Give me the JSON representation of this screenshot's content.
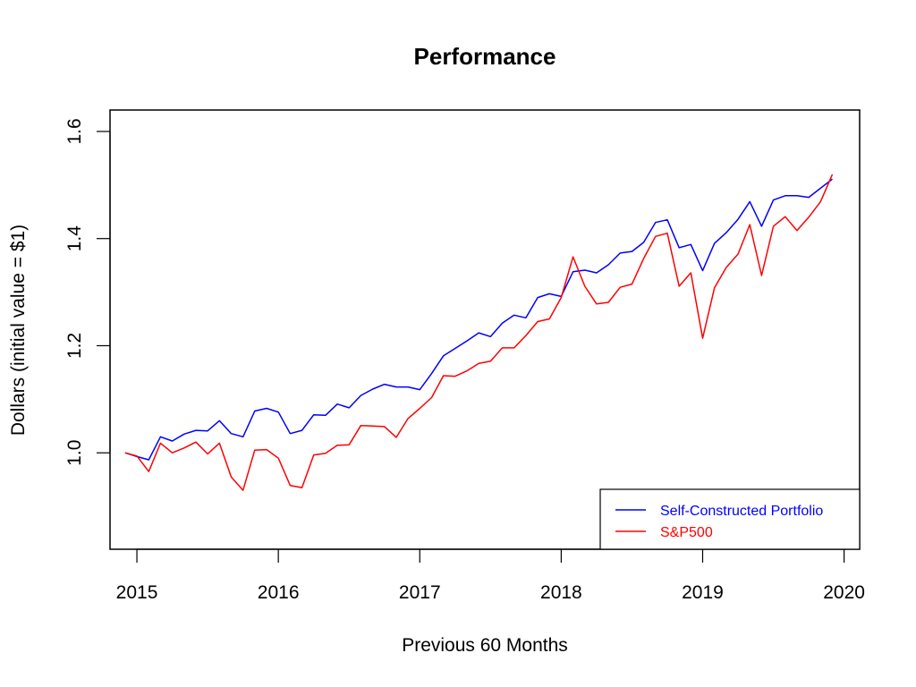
{
  "chart_data": {
    "type": "line",
    "title": "Performance",
    "xlabel": "Previous 60 Months",
    "ylabel": "Dollars (initial value = $1)",
    "xlim": [
      2014.81,
      2020.11
    ],
    "ylim": [
      0.82,
      1.64
    ],
    "x_ticks": [
      2015,
      2016,
      2017,
      2018,
      2019,
      2020
    ],
    "x_tick_labels": [
      "2015",
      "2016",
      "2017",
      "2018",
      "2019",
      "2020"
    ],
    "y_ticks": [
      1.0,
      1.2,
      1.4,
      1.6
    ],
    "y_tick_labels": [
      "1.0",
      "1.2",
      "1.4",
      "1.6"
    ],
    "legend_position": "bottom-right",
    "x_start": 2014.917,
    "x_step": 0.08333,
    "series": [
      {
        "name": "Self-Constructed Portfolio",
        "color": "#0000ff",
        "values": [
          1.0,
          0.993,
          0.987,
          1.03,
          1.022,
          1.035,
          1.042,
          1.041,
          1.06,
          1.036,
          1.03,
          1.078,
          1.083,
          1.076,
          1.036,
          1.042,
          1.071,
          1.07,
          1.091,
          1.084,
          1.107,
          1.119,
          1.128,
          1.123,
          1.123,
          1.118,
          1.148,
          1.181,
          1.195,
          1.209,
          1.224,
          1.217,
          1.242,
          1.257,
          1.252,
          1.29,
          1.297,
          1.292,
          1.338,
          1.341,
          1.336,
          1.351,
          1.373,
          1.376,
          1.393,
          1.43,
          1.435,
          1.383,
          1.389,
          1.34,
          1.391,
          1.411,
          1.436,
          1.469,
          1.423,
          1.472,
          1.48,
          1.48,
          1.477,
          1.494,
          1.511
        ]
      },
      {
        "name": "S&P500",
        "color": "#ff0000",
        "values": [
          1.0,
          0.994,
          0.965,
          1.018,
          1.0,
          1.009,
          1.02,
          0.998,
          1.018,
          0.955,
          0.93,
          1.005,
          1.006,
          0.99,
          0.939,
          0.935,
          0.996,
          0.999,
          1.014,
          1.015,
          1.051,
          1.05,
          1.049,
          1.029,
          1.064,
          1.083,
          1.103,
          1.144,
          1.143,
          1.153,
          1.167,
          1.171,
          1.196,
          1.196,
          1.219,
          1.245,
          1.25,
          1.29,
          1.366,
          1.311,
          1.278,
          1.281,
          1.309,
          1.315,
          1.363,
          1.404,
          1.41,
          1.311,
          1.336,
          1.214,
          1.308,
          1.346,
          1.371,
          1.426,
          1.331,
          1.423,
          1.441,
          1.415,
          1.44,
          1.469,
          1.52
        ]
      }
    ]
  }
}
